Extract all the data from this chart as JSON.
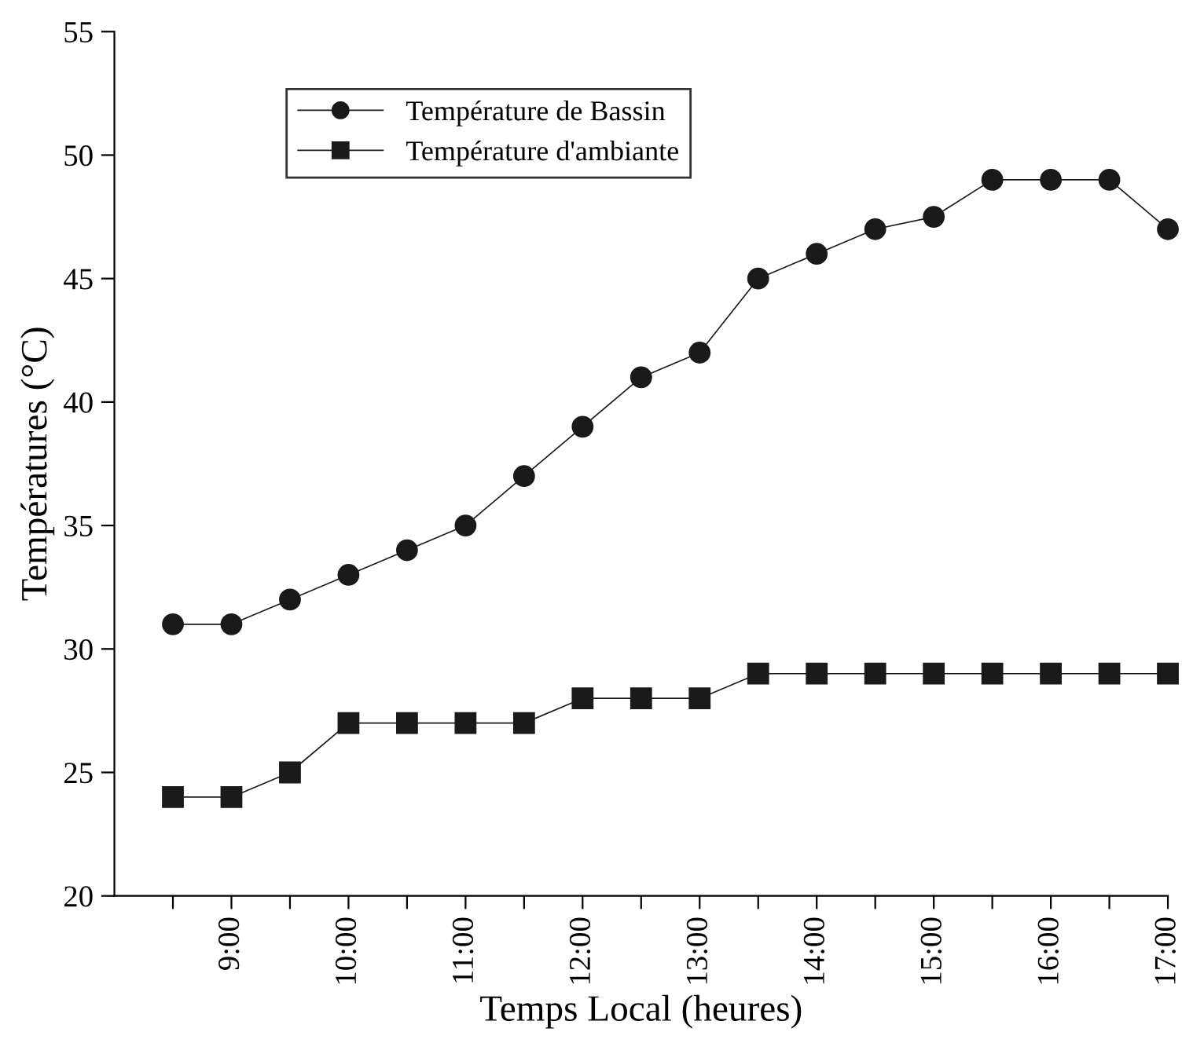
{
  "chart_data": {
    "type": "line",
    "xlabel": "Temps Local (heures)",
    "ylabel": "Températures (°C)",
    "x": [
      8.5,
      9,
      9.5,
      10,
      10.5,
      11,
      11.5,
      12,
      12.5,
      13,
      13.5,
      14,
      14.5,
      15,
      15.5,
      16,
      16.5,
      17
    ],
    "series": [
      {
        "name": "Température de Bassin",
        "color": "#1a1a1a",
        "marker": "circle",
        "values": [
          31,
          31,
          32,
          33,
          34,
          35,
          37,
          39,
          41,
          42,
          45,
          46,
          47,
          47.5,
          49,
          49,
          49,
          47
        ]
      },
      {
        "name": "Température d'ambiante",
        "color": "#1a1a1a",
        "marker": "square",
        "values": [
          24,
          24,
          25,
          27,
          27,
          27,
          27,
          28,
          28,
          28,
          29,
          29,
          29,
          29,
          29,
          29,
          29,
          29
        ]
      }
    ],
    "xlim": [
      8,
      17
    ],
    "xticks": [
      {
        "value": 8.5,
        "label": null
      },
      {
        "value": 9,
        "label": "9:00"
      },
      {
        "value": 9.5,
        "label": null
      },
      {
        "value": 10,
        "label": "10:00"
      },
      {
        "value": 10.5,
        "label": null
      },
      {
        "value": 11,
        "label": "11:00"
      },
      {
        "value": 11.5,
        "label": null
      },
      {
        "value": 12,
        "label": "12:00"
      },
      {
        "value": 12.5,
        "label": null
      },
      {
        "value": 13,
        "label": "13:00"
      },
      {
        "value": 13.5,
        "label": null
      },
      {
        "value": 14,
        "label": "14:00"
      },
      {
        "value": 14.5,
        "label": null
      },
      {
        "value": 15,
        "label": "15:00"
      },
      {
        "value": 15.5,
        "label": null
      },
      {
        "value": 16,
        "label": "16:00"
      },
      {
        "value": 16.5,
        "label": null
      },
      {
        "value": 17,
        "label": "17:00"
      }
    ],
    "ylim": [
      20,
      55
    ],
    "yticks": [
      20,
      25,
      30,
      35,
      40,
      45,
      50,
      55
    ],
    "grid": false,
    "legend": "top left",
    "line_style": "solid"
  }
}
